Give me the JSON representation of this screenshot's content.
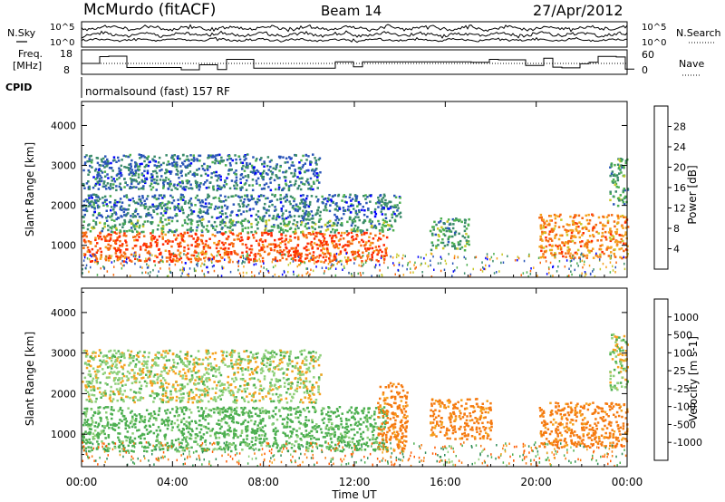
{
  "header": {
    "station": "McMurdo (fitACF)",
    "beam": "Beam 14",
    "date": "27/Apr/2012"
  },
  "noise_panel": {
    "left_label": "N.Sky",
    "right_label": "N.Search",
    "left_ticks": [
      "10^5",
      "10^0"
    ],
    "right_ticks": [
      "10^5",
      "10^0"
    ]
  },
  "freq_panel": {
    "left_label_1": "Freq.",
    "left_label_2": "[MHz]",
    "right_label": "Nave",
    "left_ticks": [
      "18",
      "8"
    ],
    "right_ticks": [
      "60",
      "0"
    ]
  },
  "cpid": {
    "label": "CPID",
    "text": "normalsound (fast) 157 RF"
  },
  "x_axis": {
    "label": "Time UT",
    "ticks": [
      "00:00",
      "04:00",
      "08:00",
      "12:00",
      "16:00",
      "20:00",
      "00:00"
    ]
  },
  "chart_data": [
    {
      "type": "heatmap",
      "name": "power",
      "xlabel": "Time UT",
      "ylabel": "Slant Range [km]",
      "yticks": [
        1000,
        2000,
        3000,
        4000
      ],
      "ylim": [
        200,
        4600
      ],
      "xlim": [
        0,
        24
      ],
      "colorbar": {
        "label": "Power [dB]",
        "ticks": [
          4,
          8,
          12,
          16,
          20,
          24,
          28
        ],
        "colors": [
          "#0000ff",
          "#2a55b8",
          "#3a8a6a",
          "#4caf50",
          "#c8c82a",
          "#f5a21e",
          "#f56a10",
          "#ff2a00"
        ]
      },
      "regions": [
        {
          "t0": 0.0,
          "t1": 13.4,
          "r0": 600,
          "r1": 1350,
          "value": 28
        },
        {
          "t0": 0.0,
          "t1": 13.8,
          "r0": 1350,
          "r1": 1700,
          "value": 12
        },
        {
          "t0": 0.0,
          "t1": 14.0,
          "r0": 1700,
          "r1": 2300,
          "value": 8
        },
        {
          "t0": 0.0,
          "t1": 10.5,
          "r0": 2400,
          "r1": 3300,
          "value": 8
        },
        {
          "t0": 15.3,
          "t1": 17.0,
          "r0": 900,
          "r1": 1700,
          "value": 12
        },
        {
          "t0": 20.1,
          "t1": 24.0,
          "r0": 700,
          "r1": 1800,
          "value": 24
        },
        {
          "t0": 23.2,
          "t1": 24.0,
          "r0": 2000,
          "r1": 3200,
          "value": 12
        }
      ]
    },
    {
      "type": "heatmap",
      "name": "velocity",
      "xlabel": "Time UT",
      "ylabel": "Slant Range [km]",
      "yticks": [
        1000,
        2000,
        3000,
        4000
      ],
      "ylim": [
        200,
        4600
      ],
      "xlim": [
        0,
        24
      ],
      "colorbar": {
        "label": "Velocity [m s-1]",
        "ticks": [
          1000,
          500,
          100,
          25,
          -25,
          -100,
          -500,
          -1000
        ],
        "colors": [
          "#2040c0",
          "#2e8b57",
          "#4caf50",
          "#8fd07a",
          "#c0c0c0",
          "#f5a21e",
          "#f57a10",
          "#ff5a00",
          "#ff0000"
        ]
      },
      "regions": [
        {
          "t0": 0.0,
          "t1": 13.4,
          "r0": 600,
          "r1": 1700,
          "value": 100
        },
        {
          "t0": 0.0,
          "t1": 10.5,
          "r0": 1800,
          "r1": 3100,
          "value": 25
        },
        {
          "t0": 13.0,
          "t1": 14.3,
          "r0": 600,
          "r1": 2300,
          "value": -100
        },
        {
          "t0": 15.3,
          "t1": 18.0,
          "r0": 900,
          "r1": 1900,
          "value": -100
        },
        {
          "t0": 20.1,
          "t1": 24.0,
          "r0": 700,
          "r1": 1800,
          "value": -100
        },
        {
          "t0": 23.2,
          "t1": 24.0,
          "r0": 2100,
          "r1": 3500,
          "value": 25
        }
      ]
    }
  ]
}
